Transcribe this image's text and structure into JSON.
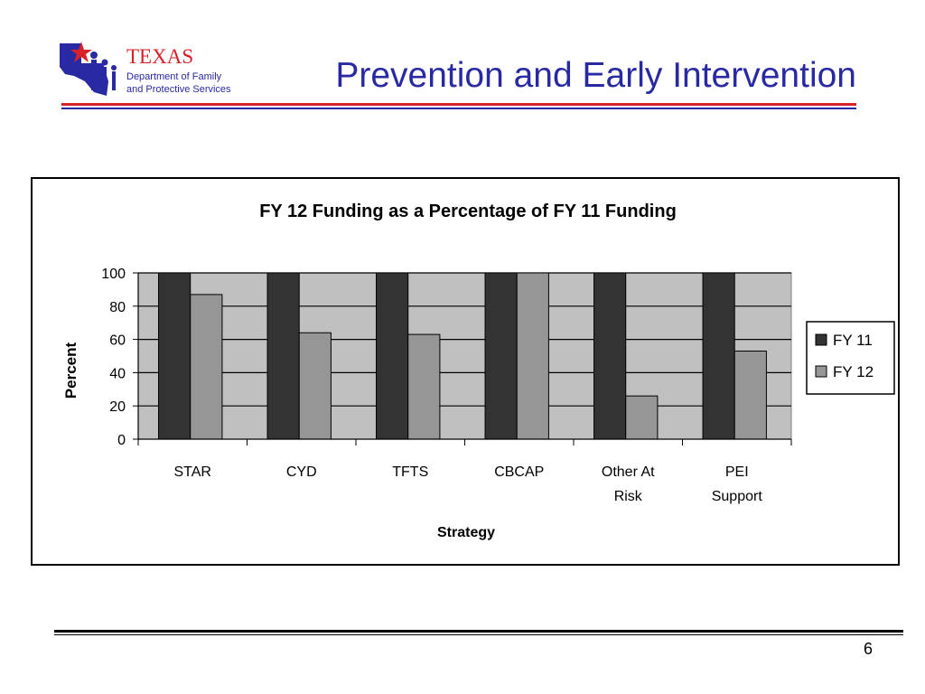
{
  "slide": {
    "title": "Prevention and Early Intervention",
    "page_number": "6"
  },
  "logo": {
    "line1": "TEXAS",
    "line2": "Department of Family",
    "line3": "and Protective Services"
  },
  "colors": {
    "title_blue": "#2929a3",
    "rule_red": "#d8222a",
    "plot_bg": "#c0c0c0",
    "fy11": "#333333",
    "fy12": "#969696"
  },
  "chart_data": {
    "type": "bar",
    "title": "FY 12 Funding as a Percentage of FY 11 Funding",
    "xlabel": "Strategy",
    "ylabel": "Percent",
    "categories": [
      [
        "STAR"
      ],
      [
        "CYD"
      ],
      [
        "TFTS"
      ],
      [
        "CBCAP"
      ],
      [
        "Other At",
        "Risk"
      ],
      [
        "PEI",
        "Support"
      ]
    ],
    "series": [
      {
        "name": "FY 11",
        "color": "#333333",
        "values": [
          100,
          100,
          100,
          100,
          100,
          100
        ]
      },
      {
        "name": "FY 12",
        "color": "#969696",
        "values": [
          87,
          64,
          63,
          100,
          26,
          53
        ]
      }
    ],
    "ylim": [
      0,
      100
    ],
    "yticks": [
      0,
      20,
      40,
      60,
      80,
      100
    ],
    "grid": true,
    "legend_position": "right"
  }
}
